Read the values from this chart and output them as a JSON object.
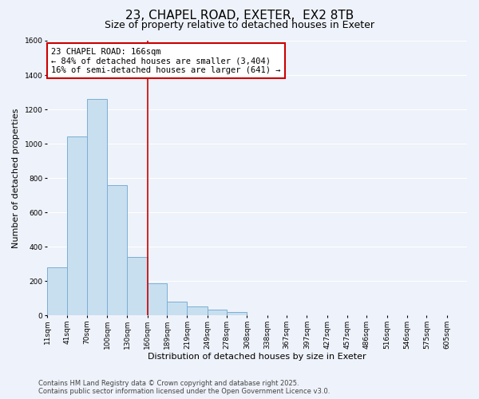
{
  "title": "23, CHAPEL ROAD, EXETER,  EX2 8TB",
  "subtitle": "Size of property relative to detached houses in Exeter",
  "xlabel": "Distribution of detached houses by size in Exeter",
  "ylabel": "Number of detached properties",
  "bar_left_edges": [
    11,
    41,
    70,
    100,
    130,
    160,
    189,
    219,
    249,
    278,
    308,
    338,
    367,
    397,
    427,
    457,
    486,
    516,
    546,
    575
  ],
  "bar_heights": [
    280,
    1040,
    1260,
    760,
    340,
    185,
    80,
    50,
    32,
    18,
    0,
    0,
    0,
    0,
    0,
    0,
    0,
    0,
    0,
    0
  ],
  "bar_widths": [
    30,
    29,
    30,
    30,
    30,
    29,
    30,
    30,
    29,
    30,
    30,
    29,
    30,
    30,
    30,
    29,
    30,
    30,
    29,
    30
  ],
  "tick_labels": [
    "11sqm",
    "41sqm",
    "70sqm",
    "100sqm",
    "130sqm",
    "160sqm",
    "189sqm",
    "219sqm",
    "249sqm",
    "278sqm",
    "308sqm",
    "338sqm",
    "367sqm",
    "397sqm",
    "427sqm",
    "457sqm",
    "486sqm",
    "516sqm",
    "546sqm",
    "575sqm",
    "605sqm"
  ],
  "bar_color": "#c8dff0",
  "bar_edge_color": "#7bafd4",
  "highlight_x": 160,
  "xlim_min": 11,
  "xlim_max": 635,
  "ylim": [
    0,
    1600
  ],
  "yticks": [
    0,
    200,
    400,
    600,
    800,
    1000,
    1200,
    1400,
    1600
  ],
  "annotation_title": "23 CHAPEL ROAD: 166sqm",
  "annotation_line1": "← 84% of detached houses are smaller (3,404)",
  "annotation_line2": "16% of semi-detached houses are larger (641) →",
  "annotation_box_facecolor": "#ffffff",
  "annotation_box_edgecolor": "#cc0000",
  "vline_color": "#cc0000",
  "footnote1": "Contains HM Land Registry data © Crown copyright and database right 2025.",
  "footnote2": "Contains public sector information licensed under the Open Government Licence v3.0.",
  "bg_color": "#eef2fa",
  "grid_color": "#ffffff",
  "title_fontsize": 11,
  "subtitle_fontsize": 9,
  "xlabel_fontsize": 8,
  "ylabel_fontsize": 8,
  "tick_fontsize": 6.5,
  "annotation_fontsize": 7.5,
  "footnote_fontsize": 6
}
